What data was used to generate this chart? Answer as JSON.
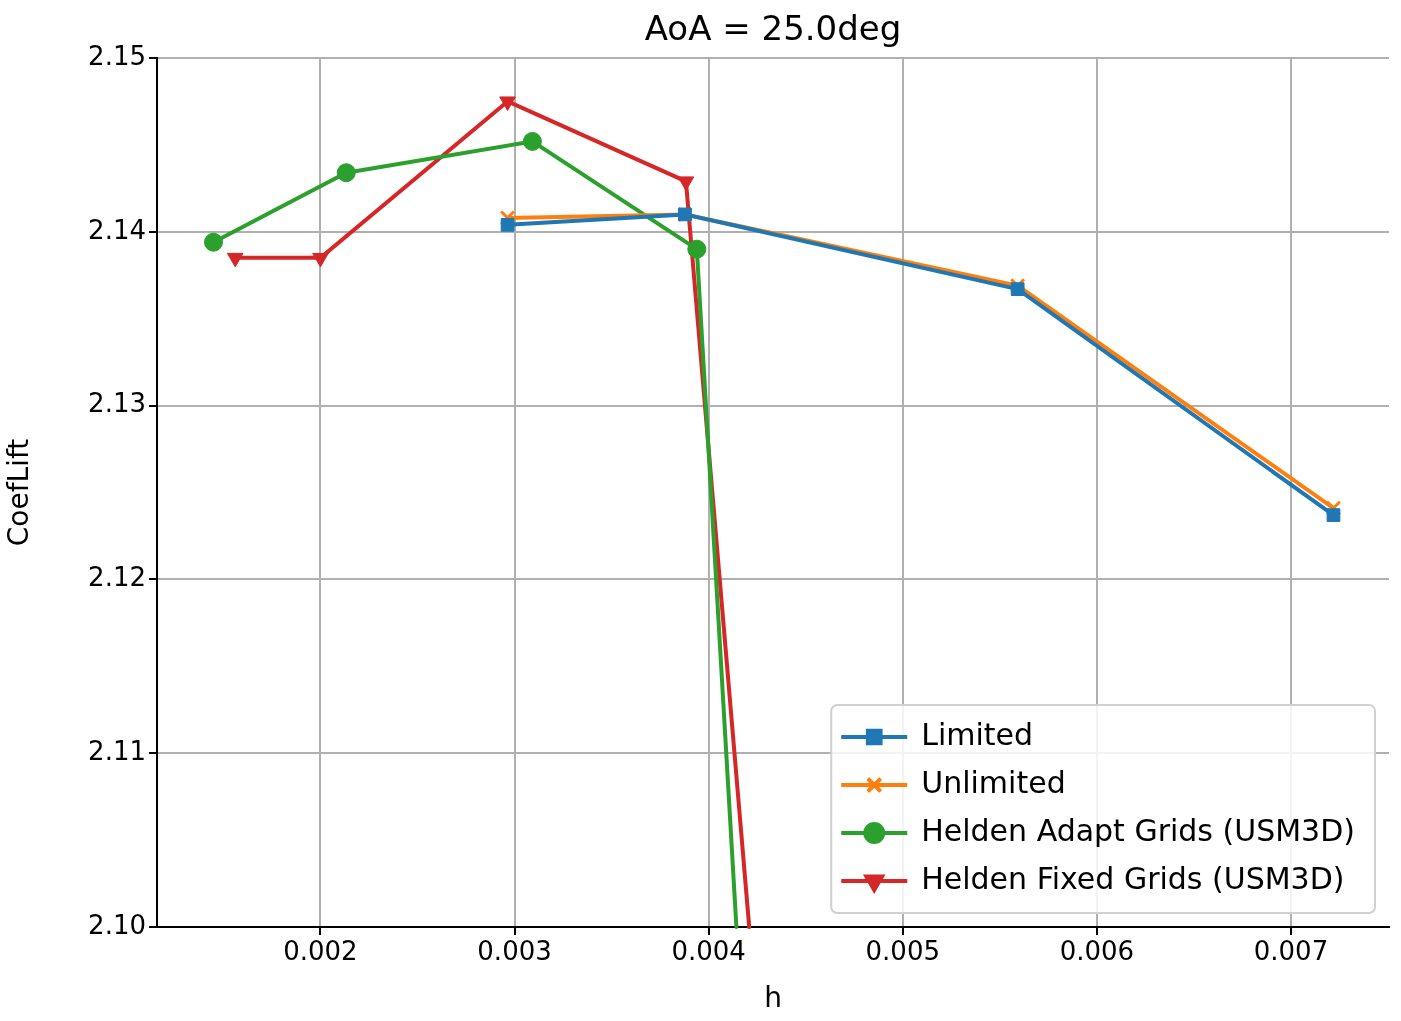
{
  "chart_data": {
    "type": "line",
    "title": "AoA = 25.0deg",
    "xlabel": "h",
    "ylabel": "CoefLift",
    "xlim": [
      0.001158,
      0.007505
    ],
    "xticks": [
      0.002,
      0.003,
      0.004,
      0.005,
      0.006,
      0.007
    ],
    "ylim": [
      2.1,
      2.15
    ],
    "yticks": [
      {
        "value": 2.1,
        "label": "2.10"
      },
      2.11,
      2.12,
      2.13,
      2.14,
      2.15
    ],
    "grid": true,
    "legend": "bottom right",
    "series": [
      {
        "name": "Limited",
        "color": "#1f77b4",
        "marker": "square",
        "x": [
          0.002964,
          0.003878,
          0.005592,
          0.007219
        ],
        "values": [
          2.1404,
          2.141,
          2.1367,
          2.1237
        ]
      },
      {
        "name": "Unlimited",
        "color": "#ff7f0e",
        "marker": "cross",
        "x": [
          0.002964,
          0.003878,
          0.005592,
          0.007219
        ],
        "values": [
          2.1408,
          2.141,
          2.1369,
          2.1241
        ]
      },
      {
        "name": "Helden Adapt Grids (USM3D)",
        "color": "#2ca02c",
        "marker": "circle",
        "x": [
          0.001449,
          0.002133,
          0.003092,
          0.003939,
          0.004143
        ],
        "values": [
          2.1394,
          2.1434,
          2.1452,
          2.139,
          2.1
        ]
      },
      {
        "name": "Helden Fixed Grids (USM3D)",
        "color": "#d62728",
        "marker": "triangle_down",
        "x": [
          0.001561,
          0.002,
          0.002964,
          0.003883,
          0.004209
        ],
        "values": [
          2.1385,
          2.1385,
          2.1475,
          2.1429,
          2.1
        ]
      }
    ]
  }
}
